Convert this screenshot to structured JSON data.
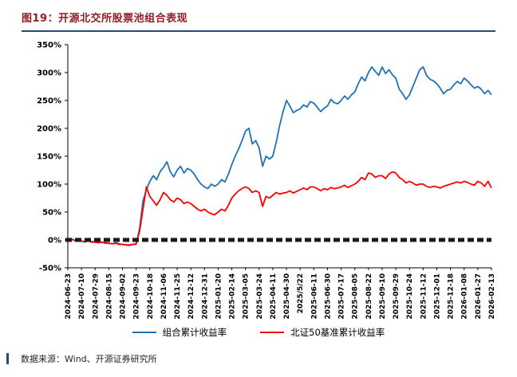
{
  "title": "图19：开源北交所股票池组合表现",
  "footer": "数据来源：Wind、开源证券研究所",
  "colors": {
    "title_red": "#8F1D22",
    "rule_blue": "#1F4E79",
    "axis": "#000000",
    "text": "#000000"
  },
  "chart_data": {
    "type": "line",
    "title": "开源北交所股票池组合表现",
    "xlabel": "",
    "ylabel": "",
    "ylim": [
      -50,
      350
    ],
    "ytick_step": 50,
    "ytick_suffix": "%",
    "grid": false,
    "legend_position": "bottom",
    "x_label_rotation": -90,
    "zero_line": {
      "value": 0,
      "style": "dashed",
      "color": "#1A1A1A",
      "width": 5
    },
    "points_per_label": 4,
    "categories": [
      "2024-06-23",
      "2024-07-10",
      "2024-07-29",
      "2024-08-15",
      "2024-09-02",
      "2024-09-23",
      "2024-10-18",
      "2024-11-06",
      "2024-11-25",
      "2024-12-12",
      "2024-12-31",
      "2025-01-20",
      "2025-02-14",
      "2025-03-05",
      "2025-03-24",
      "2025-04-11",
      "2025-04-30",
      "2025/5/22",
      "2025-06-11",
      "2025-06-30",
      "2025-07-17",
      "2025-08-05",
      "2025-08-22",
      "2025-09-10",
      "2025-09-29",
      "2025-10-24",
      "2025-11-12",
      "2025-12-01",
      "2025-12-18",
      "2026-01-08",
      "2026-01-27",
      "2026-02-13"
    ],
    "series": [
      {
        "name": "组合累计收益率",
        "color": "#2171B5",
        "values": [
          0,
          2,
          -1,
          -2,
          -2,
          -4,
          -1,
          -3,
          -3,
          -5,
          -4,
          -5,
          -6,
          -7,
          -5,
          -7,
          -8,
          -9,
          -10,
          -8,
          -8,
          20,
          70,
          90,
          105,
          115,
          108,
          122,
          130,
          140,
          122,
          113,
          125,
          132,
          120,
          128,
          125,
          118,
          108,
          100,
          95,
          92,
          100,
          96,
          100,
          108,
          104,
          118,
          135,
          150,
          163,
          178,
          195,
          200,
          172,
          178,
          165,
          132,
          150,
          145,
          150,
          175,
          205,
          230,
          250,
          240,
          228,
          232,
          235,
          242,
          238,
          248,
          245,
          238,
          230,
          236,
          240,
          252,
          246,
          244,
          250,
          258,
          252,
          260,
          265,
          280,
          292,
          285,
          300,
          310,
          302,
          295,
          310,
          298,
          305,
          296,
          290,
          270,
          262,
          252,
          260,
          275,
          290,
          305,
          310,
          295,
          288,
          285,
          280,
          272,
          262,
          268,
          270,
          278,
          284,
          280,
          290,
          285,
          278,
          272,
          275,
          270,
          262,
          268,
          260
        ]
      },
      {
        "name": "北证50基准累计收益率",
        "color": "#FF0000",
        "values": [
          0,
          1,
          -1,
          -2,
          -2,
          -3,
          -2,
          -4,
          -4,
          -5,
          -4,
          -6,
          -6,
          -7,
          -6,
          -8,
          -8,
          -9,
          -9,
          -8,
          -7,
          15,
          55,
          95,
          78,
          70,
          62,
          72,
          85,
          80,
          72,
          68,
          75,
          72,
          65,
          68,
          65,
          60,
          55,
          52,
          55,
          50,
          47,
          45,
          50,
          55,
          52,
          62,
          75,
          82,
          88,
          92,
          95,
          92,
          85,
          88,
          85,
          60,
          78,
          75,
          80,
          85,
          82,
          84,
          85,
          88,
          84,
          87,
          90,
          93,
          90,
          95,
          95,
          92,
          88,
          92,
          90,
          94,
          92,
          93,
          95,
          98,
          94,
          97,
          100,
          105,
          112,
          108,
          120,
          118,
          112,
          115,
          115,
          110,
          118,
          122,
          120,
          112,
          108,
          102,
          105,
          102,
          98,
          100,
          100,
          96,
          94,
          96,
          95,
          93,
          96,
          98,
          100,
          102,
          104,
          102,
          105,
          103,
          100,
          98,
          105,
          102,
          96,
          105,
          93
        ]
      }
    ]
  }
}
